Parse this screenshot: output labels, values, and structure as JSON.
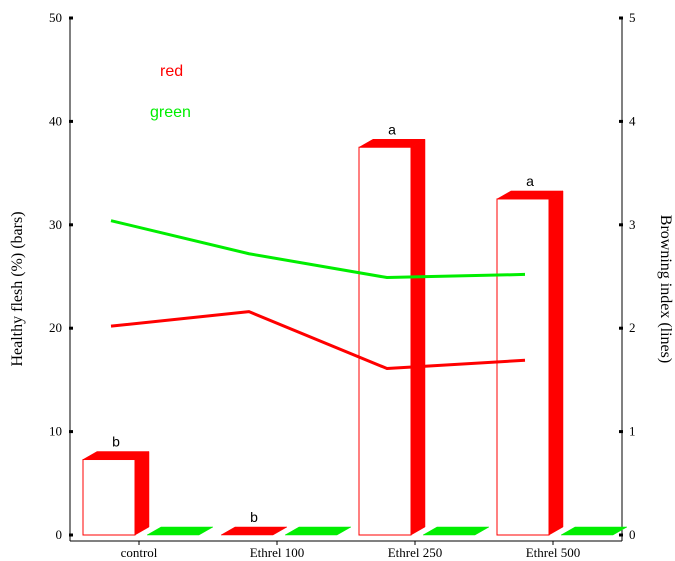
{
  "chart_data": {
    "type": "bar",
    "categories": [
      "control",
      "Ethrel 100",
      "Ethrel 250",
      "Ethrel 500"
    ],
    "ylabel_left": "Healthy flesh (%)  (bars)",
    "ylabel_right": "Browning index (lines)",
    "ylim_left": [
      0,
      50
    ],
    "ylim_right": [
      0,
      5
    ],
    "yticks_left": [
      "0",
      "10",
      "20",
      "30",
      "40",
      "50"
    ],
    "yticks_right": [
      "0",
      "1",
      "2",
      "3",
      "4",
      "5"
    ],
    "bars": [
      {
        "name": "red",
        "color": "#ff0000",
        "values": [
          7.3,
          0,
          37.5,
          32.5
        ],
        "labels": [
          "b",
          "b",
          "a",
          "a"
        ]
      },
      {
        "name": "green",
        "color": "#00ee00",
        "values": [
          0,
          0,
          0,
          0
        ],
        "labels": [
          "",
          "",
          "",
          ""
        ]
      }
    ],
    "lines": [
      {
        "name": "red",
        "color": "#ff0000",
        "values": [
          2.02,
          2.16,
          1.61,
          1.69
        ]
      },
      {
        "name": "green",
        "color": "#00ee00",
        "values": [
          3.04,
          2.72,
          2.49,
          2.52
        ]
      }
    ],
    "legend": [
      {
        "label": "red",
        "color": "#ff0000"
      },
      {
        "label": "green",
        "color": "#00ee00"
      }
    ],
    "legend_position": "top-left",
    "grid": false
  }
}
